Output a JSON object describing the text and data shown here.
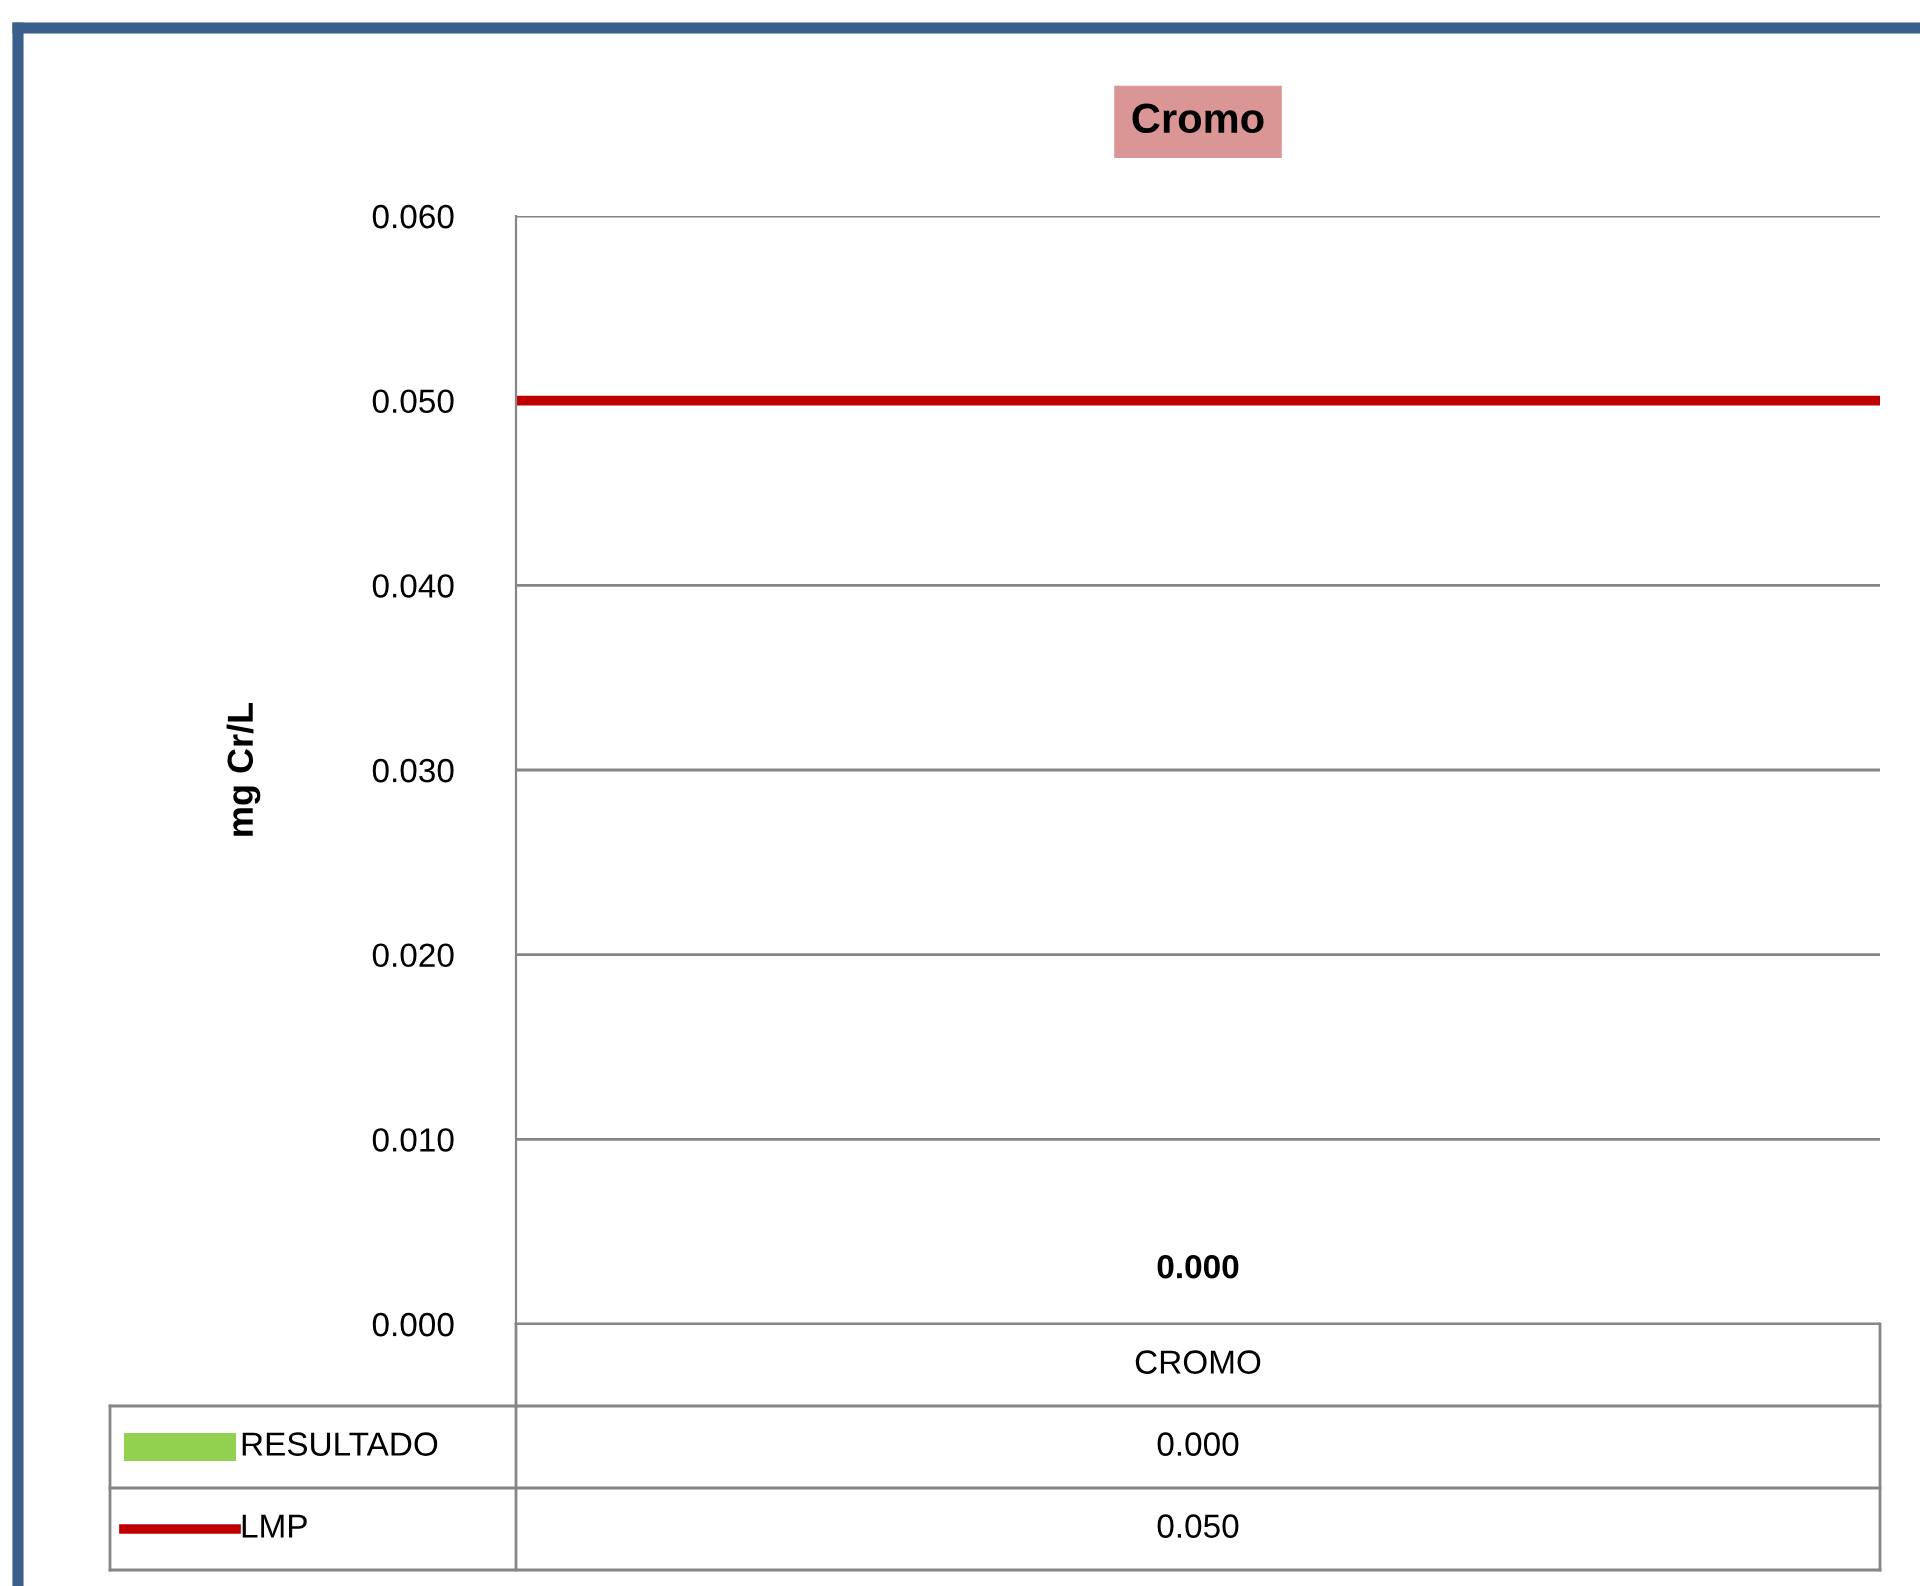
{
  "chart_data": {
    "type": "bar",
    "title": "Cromo",
    "ylabel": "mg Cr/L",
    "categories": [
      "CROMO"
    ],
    "series": [
      {
        "name": "RESULTADO",
        "color": "#92d050",
        "values": [
          0.0
        ],
        "value_labels": [
          "0.000"
        ]
      }
    ],
    "ref_lines": [
      {
        "axis": "y",
        "value": 0.05,
        "label": "LMP",
        "color": "#c00000",
        "line_style": "solid"
      }
    ],
    "ylim": [
      0,
      0.06
    ],
    "yticks": [
      {
        "value": 0,
        "label": "0.000"
      },
      {
        "value": 0.01,
        "label": "0.010"
      },
      {
        "value": 0.02,
        "label": "0.020"
      },
      {
        "value": 0.03,
        "label": "0.030"
      },
      {
        "value": 0.04,
        "label": "0.040"
      },
      {
        "value": 0.05,
        "label": "0.050"
      },
      {
        "value": 0.06,
        "label": "0.060"
      }
    ],
    "annotations": [
      "0.050"
    ],
    "grid": "y",
    "legend": "bottom"
  }
}
